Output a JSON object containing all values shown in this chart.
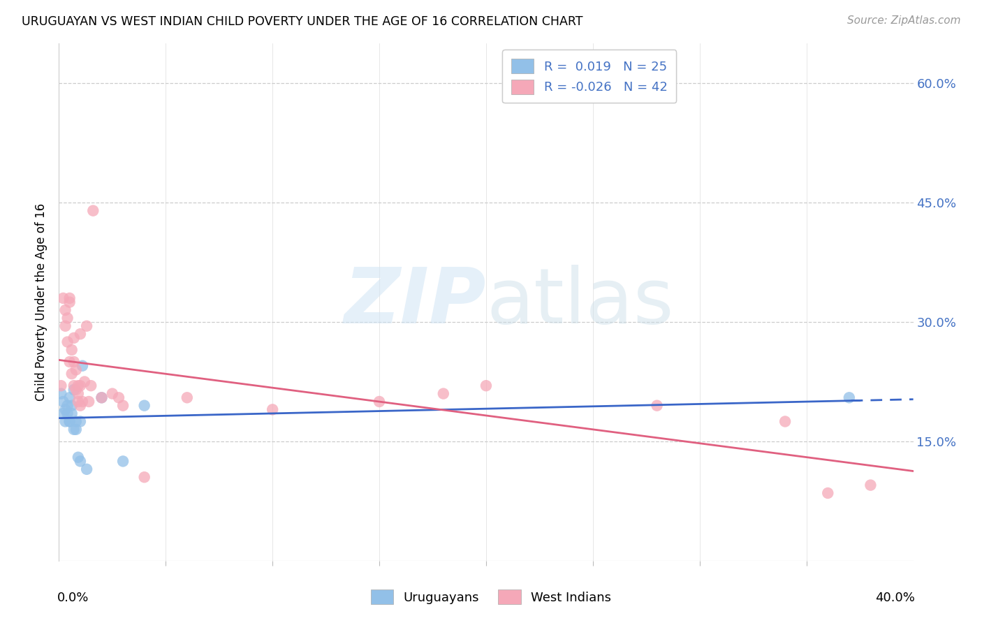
{
  "title": "URUGUAYAN VS WEST INDIAN CHILD POVERTY UNDER THE AGE OF 16 CORRELATION CHART",
  "source": "Source: ZipAtlas.com",
  "ylabel": "Child Poverty Under the Age of 16",
  "watermark_zip": "ZIP",
  "watermark_atlas": "atlas",
  "ytick_labels": [
    "60.0%",
    "45.0%",
    "30.0%",
    "15.0%"
  ],
  "ytick_values": [
    0.6,
    0.45,
    0.3,
    0.15
  ],
  "color_uruguayan": "#92c0e8",
  "color_west_indian": "#f5a8b8",
  "color_line_uruguayan": "#3a66c8",
  "color_line_west_indian": "#e06080",
  "uruguayan_x": [
    0.001,
    0.002,
    0.002,
    0.003,
    0.003,
    0.004,
    0.004,
    0.005,
    0.005,
    0.005,
    0.006,
    0.006,
    0.007,
    0.007,
    0.008,
    0.008,
    0.009,
    0.01,
    0.01,
    0.011,
    0.013,
    0.02,
    0.03,
    0.04,
    0.37
  ],
  "uruguayan_y": [
    0.21,
    0.2,
    0.185,
    0.19,
    0.175,
    0.185,
    0.195,
    0.175,
    0.205,
    0.175,
    0.195,
    0.185,
    0.165,
    0.215,
    0.175,
    0.165,
    0.13,
    0.175,
    0.125,
    0.245,
    0.115,
    0.205,
    0.125,
    0.195,
    0.205
  ],
  "west_indian_x": [
    0.001,
    0.002,
    0.003,
    0.003,
    0.004,
    0.004,
    0.005,
    0.005,
    0.005,
    0.006,
    0.006,
    0.007,
    0.007,
    0.007,
    0.008,
    0.008,
    0.009,
    0.009,
    0.009,
    0.01,
    0.01,
    0.01,
    0.011,
    0.012,
    0.013,
    0.014,
    0.015,
    0.016,
    0.02,
    0.025,
    0.028,
    0.03,
    0.04,
    0.06,
    0.1,
    0.15,
    0.18,
    0.2,
    0.28,
    0.34,
    0.36,
    0.38
  ],
  "west_indian_y": [
    0.22,
    0.33,
    0.295,
    0.315,
    0.275,
    0.305,
    0.25,
    0.325,
    0.33,
    0.235,
    0.265,
    0.22,
    0.25,
    0.28,
    0.215,
    0.24,
    0.2,
    0.22,
    0.21,
    0.195,
    0.22,
    0.285,
    0.2,
    0.225,
    0.295,
    0.2,
    0.22,
    0.44,
    0.205,
    0.21,
    0.205,
    0.195,
    0.105,
    0.205,
    0.19,
    0.2,
    0.21,
    0.22,
    0.195,
    0.175,
    0.085,
    0.095
  ],
  "xlim": [
    0.0,
    0.4
  ],
  "ylim": [
    0.0,
    0.65
  ],
  "figsize": [
    14.06,
    8.92
  ],
  "dpi": 100
}
